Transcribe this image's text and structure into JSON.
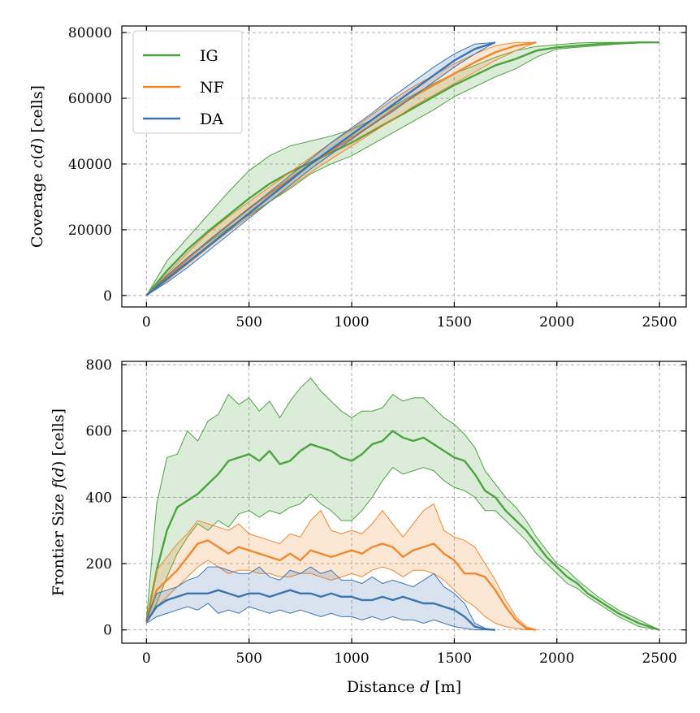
{
  "chart_data": [
    {
      "type": "line",
      "ylabel": "Coverage c(d) [cells]",
      "xlabel": "",
      "xlim": [
        -120,
        2630
      ],
      "ylim": [
        -3500,
        82000
      ],
      "xticks": [
        0,
        500,
        1000,
        1500,
        2000,
        2500
      ],
      "xtick_labels": [
        "0",
        "500",
        "1000",
        "1500",
        "2000",
        "2500"
      ],
      "yticks": [
        0,
        20000,
        40000,
        60000,
        80000
      ],
      "ytick_labels": [
        "0",
        "20000",
        "40000",
        "60000",
        "80000"
      ],
      "grid": true,
      "legend": {
        "position": "top-left",
        "entries": [
          "IG",
          "NF",
          "DA"
        ]
      },
      "series": [
        {
          "name": "IG",
          "color": "#4ca33f",
          "x": [
            0,
            100,
            200,
            300,
            400,
            500,
            600,
            700,
            800,
            900,
            1000,
            1100,
            1200,
            1300,
            1400,
            1500,
            1600,
            1700,
            1800,
            1900,
            2000,
            2100,
            2200,
            2300,
            2400,
            2500
          ],
          "mean": [
            0,
            7500,
            14000,
            19500,
            24500,
            29500,
            34000,
            37500,
            40500,
            43500,
            46500,
            50000,
            53500,
            57000,
            60500,
            64000,
            67000,
            70000,
            72000,
            74500,
            75500,
            76000,
            76500,
            76800,
            77000,
            77000
          ],
          "upper": [
            0,
            10500,
            17500,
            24500,
            31500,
            38000,
            42500,
            45500,
            47000,
            48500,
            50500,
            53500,
            57500,
            61000,
            64500,
            67500,
            70000,
            72500,
            74500,
            75800,
            76300,
            76800,
            77000,
            77000,
            77000,
            77000
          ],
          "lower": [
            0,
            6000,
            11000,
            16000,
            20500,
            24500,
            28500,
            32500,
            37000,
            40000,
            42500,
            46000,
            49500,
            53000,
            56500,
            60500,
            63500,
            66500,
            69000,
            72500,
            75000,
            75500,
            76000,
            76500,
            76800,
            77000
          ]
        },
        {
          "name": "NF",
          "color": "#f0882f",
          "x": [
            0,
            100,
            200,
            300,
            400,
            500,
            600,
            700,
            800,
            900,
            1000,
            1100,
            1200,
            1300,
            1400,
            1500,
            1600,
            1700,
            1800,
            1900
          ],
          "mean": [
            0,
            5500,
            11000,
            16500,
            21500,
            26500,
            31000,
            35500,
            40000,
            44000,
            48000,
            52000,
            56500,
            60500,
            64000,
            67500,
            71000,
            74000,
            76000,
            77000
          ],
          "upper": [
            0,
            6500,
            13000,
            19000,
            24000,
            28500,
            33000,
            37500,
            42000,
            46500,
            50500,
            55000,
            59500,
            63500,
            67000,
            70500,
            73500,
            76000,
            77000,
            77000
          ],
          "lower": [
            0,
            4500,
            9500,
            14500,
            19500,
            24000,
            28500,
            33000,
            37500,
            41500,
            45500,
            49500,
            53500,
            57500,
            61000,
            64500,
            68000,
            71500,
            74500,
            77000
          ]
        },
        {
          "name": "DA",
          "color": "#3a75b0",
          "x": [
            0,
            100,
            200,
            300,
            400,
            500,
            600,
            700,
            800,
            900,
            1000,
            1100,
            1200,
            1300,
            1400,
            1500,
            1600,
            1700
          ],
          "mean": [
            0,
            5000,
            10000,
            15000,
            20000,
            25000,
            30000,
            35000,
            40000,
            44500,
            49000,
            53500,
            58000,
            62500,
            67000,
            71500,
            75000,
            77000
          ],
          "upper": [
            0,
            6000,
            11500,
            16500,
            21500,
            26500,
            31500,
            36500,
            41500,
            46500,
            51000,
            55500,
            60500,
            65000,
            69500,
            73500,
            76500,
            77000
          ],
          "lower": [
            0,
            4000,
            8500,
            13500,
            18500,
            23500,
            28500,
            33500,
            38500,
            43000,
            47500,
            52000,
            56000,
            60500,
            65000,
            69500,
            73500,
            77000
          ]
        }
      ]
    },
    {
      "type": "line",
      "ylabel": "Frontier Size f(d) [cells]",
      "xlabel": "Distance d [m]",
      "xlim": [
        -120,
        2630
      ],
      "ylim": [
        -40,
        810
      ],
      "xticks": [
        0,
        500,
        1000,
        1500,
        2000,
        2500
      ],
      "xtick_labels": [
        "0",
        "500",
        "1000",
        "1500",
        "2000",
        "2500"
      ],
      "yticks": [
        0,
        200,
        400,
        600,
        800
      ],
      "ytick_labels": [
        "0",
        "200",
        "400",
        "600",
        "800"
      ],
      "grid": true,
      "series": [
        {
          "name": "IG",
          "color": "#4ca33f",
          "x": [
            0,
            50,
            100,
            150,
            200,
            250,
            300,
            350,
            400,
            450,
            500,
            550,
            600,
            650,
            700,
            750,
            800,
            850,
            900,
            950,
            1000,
            1050,
            1100,
            1150,
            1200,
            1250,
            1300,
            1350,
            1400,
            1450,
            1500,
            1550,
            1600,
            1650,
            1700,
            1750,
            1800,
            1850,
            1900,
            1950,
            2000,
            2050,
            2100,
            2150,
            2200,
            2250,
            2300,
            2350,
            2400,
            2450,
            2500
          ],
          "mean": [
            25,
            180,
            300,
            370,
            390,
            410,
            440,
            470,
            510,
            520,
            530,
            510,
            540,
            500,
            510,
            540,
            560,
            550,
            540,
            520,
            510,
            530,
            560,
            570,
            600,
            580,
            570,
            580,
            560,
            540,
            520,
            510,
            470,
            420,
            400,
            360,
            330,
            300,
            260,
            220,
            190,
            160,
            140,
            110,
            90,
            70,
            50,
            35,
            20,
            10,
            0
          ],
          "upper": [
            30,
            380,
            520,
            530,
            600,
            570,
            630,
            650,
            710,
            680,
            700,
            660,
            690,
            640,
            690,
            730,
            760,
            720,
            690,
            660,
            640,
            660,
            660,
            670,
            710,
            690,
            700,
            700,
            670,
            640,
            620,
            590,
            550,
            480,
            440,
            400,
            370,
            330,
            280,
            240,
            200,
            180,
            150,
            125,
            100,
            80,
            60,
            45,
            30,
            15,
            0
          ],
          "lower": [
            20,
            80,
            160,
            230,
            280,
            320,
            300,
            330,
            310,
            350,
            360,
            340,
            360,
            350,
            370,
            380,
            410,
            380,
            360,
            330,
            330,
            360,
            400,
            450,
            490,
            470,
            480,
            490,
            480,
            450,
            430,
            420,
            400,
            360,
            360,
            330,
            300,
            270,
            230,
            200,
            170,
            140,
            125,
            100,
            80,
            60,
            40,
            25,
            10,
            5,
            0
          ]
        },
        {
          "name": "NF",
          "color": "#f0882f",
          "x": [
            0,
            50,
            100,
            150,
            200,
            250,
            300,
            350,
            400,
            450,
            500,
            550,
            600,
            650,
            700,
            750,
            800,
            850,
            900,
            950,
            1000,
            1050,
            1100,
            1150,
            1200,
            1250,
            1300,
            1350,
            1400,
            1450,
            1500,
            1550,
            1600,
            1650,
            1700,
            1750,
            1800,
            1850,
            1900
          ],
          "mean": [
            25,
            120,
            150,
            180,
            220,
            260,
            270,
            250,
            230,
            250,
            240,
            230,
            220,
            210,
            230,
            210,
            240,
            230,
            220,
            230,
            240,
            230,
            250,
            260,
            250,
            220,
            240,
            250,
            260,
            230,
            210,
            170,
            170,
            160,
            120,
            70,
            30,
            5,
            0
          ],
          "upper": [
            30,
            180,
            220,
            260,
            290,
            330,
            320,
            310,
            300,
            320,
            290,
            280,
            270,
            260,
            290,
            280,
            330,
            360,
            300,
            290,
            300,
            290,
            320,
            360,
            320,
            280,
            320,
            360,
            380,
            300,
            280,
            270,
            250,
            200,
            150,
            90,
            40,
            10,
            0
          ],
          "lower": [
            20,
            70,
            100,
            130,
            160,
            190,
            210,
            190,
            170,
            180,
            180,
            170,
            170,
            160,
            160,
            170,
            170,
            160,
            150,
            160,
            170,
            160,
            180,
            190,
            180,
            160,
            180,
            180,
            170,
            150,
            120,
            90,
            70,
            40,
            20,
            10,
            5,
            0,
            0
          ]
        },
        {
          "name": "DA",
          "color": "#3a75b0",
          "x": [
            0,
            50,
            100,
            150,
            200,
            250,
            300,
            350,
            400,
            450,
            500,
            550,
            600,
            650,
            700,
            750,
            800,
            850,
            900,
            950,
            1000,
            1050,
            1100,
            1150,
            1200,
            1250,
            1300,
            1350,
            1400,
            1450,
            1500,
            1550,
            1600,
            1650,
            1700
          ],
          "mean": [
            25,
            70,
            90,
            100,
            110,
            110,
            110,
            120,
            110,
            100,
            110,
            110,
            100,
            110,
            120,
            110,
            110,
            100,
            110,
            100,
            100,
            90,
            90,
            100,
            90,
            100,
            90,
            80,
            80,
            70,
            60,
            40,
            10,
            2,
            0
          ],
          "upper": [
            35,
            110,
            120,
            130,
            150,
            160,
            190,
            190,
            180,
            170,
            170,
            190,
            160,
            150,
            180,
            170,
            190,
            170,
            180,
            150,
            150,
            140,
            160,
            140,
            150,
            140,
            130,
            150,
            170,
            130,
            110,
            80,
            20,
            5,
            0
          ],
          "lower": [
            20,
            40,
            50,
            60,
            70,
            60,
            80,
            50,
            60,
            50,
            70,
            60,
            50,
            60,
            50,
            60,
            50,
            40,
            50,
            40,
            40,
            30,
            40,
            30,
            40,
            30,
            30,
            20,
            30,
            20,
            10,
            5,
            0,
            0,
            0
          ]
        }
      ]
    }
  ]
}
